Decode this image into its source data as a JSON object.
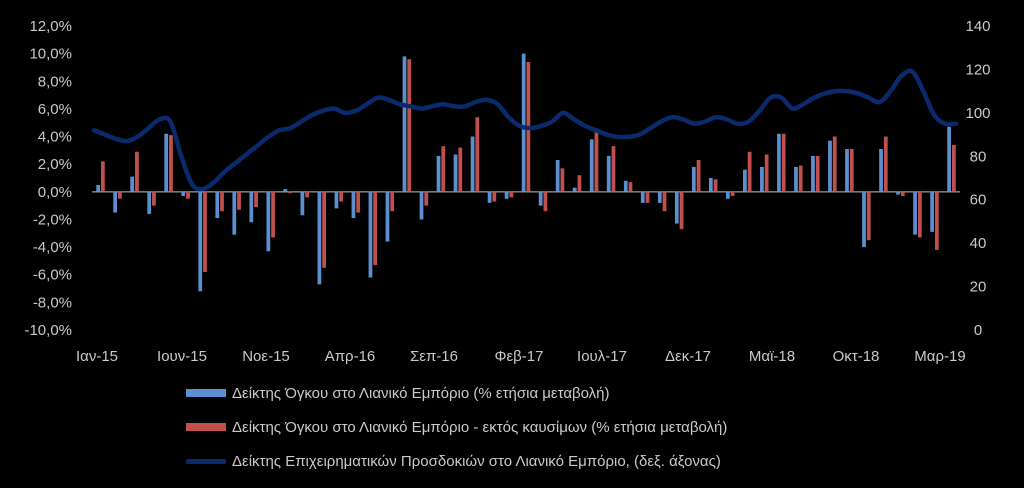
{
  "chart_data": {
    "type": "bar",
    "x_labels": [
      "Ιαν-15",
      "Ιουν-15",
      "Νοε-15",
      "Απρ-16",
      "Σεπ-16",
      "Φεβ-17",
      "Ιουλ-17",
      "Δεκ-17",
      "Μαϊ-18",
      "Οκτ-18",
      "Μαρ-19"
    ],
    "y_left_ticks": [
      "12,0%",
      "10,0%",
      "8,0%",
      "6,0%",
      "4,0%",
      "2,0%",
      "0,0%",
      "-2,0%",
      "-4,0%",
      "-6,0%",
      "-8,0%",
      "-10,0%"
    ],
    "y_right_ticks": [
      "140",
      "120",
      "100",
      "80",
      "60",
      "40",
      "20",
      "0"
    ],
    "ylim_left": [
      -10,
      12
    ],
    "ylim_right": [
      0,
      140
    ],
    "series": [
      {
        "name": "Δείκτης Όγκου στο Λιανικό Εμπόριο (% ετήσια μεταβολή)",
        "type": "bar",
        "axis": "left",
        "color": "#5b8fd0",
        "values": [
          0.5,
          -1.5,
          1.1,
          -1.6,
          4.2,
          -0.3,
          -7.2,
          -1.9,
          -3.1,
          -2.2,
          -4.3,
          0.2,
          -1.7,
          -6.7,
          -1.2,
          -1.9,
          -6.2,
          -3.6,
          9.8,
          -2.0,
          2.6,
          2.7,
          4.0,
          -0.8,
          -0.5,
          10.0,
          -1.0,
          2.3,
          0.3,
          3.8,
          2.6,
          0.8,
          -0.8,
          -0.8,
          -2.3,
          1.8,
          1.0,
          -0.5,
          1.6,
          1.8,
          4.2,
          1.8,
          2.6,
          3.7,
          3.1,
          -4.0,
          3.1,
          -0.2,
          -3.1,
          -2.9,
          4.7
        ]
      },
      {
        "name": "Δείκτης Όγκου στο Λιανικό Εμπόριο - εκτός καυσίμων (% ετήσια μεταβολή)",
        "type": "bar",
        "axis": "left",
        "color": "#c0504d",
        "values": [
          2.2,
          -0.5,
          2.9,
          -1.0,
          4.1,
          -0.5,
          -5.8,
          -1.4,
          -1.3,
          -1.1,
          -3.3,
          -0.1,
          -0.4,
          -5.5,
          -0.7,
          -1.5,
          -5.3,
          -1.4,
          9.6,
          -1.0,
          3.3,
          3.2,
          5.4,
          -0.7,
          -0.4,
          9.4,
          -1.4,
          1.7,
          1.2,
          4.3,
          3.3,
          0.7,
          -0.8,
          -1.4,
          -2.7,
          2.3,
          0.9,
          -0.3,
          2.9,
          2.7,
          4.2,
          1.9,
          2.6,
          4.0,
          3.1,
          -3.5,
          4.0,
          -0.3,
          -3.3,
          -4.2,
          3.4
        ]
      },
      {
        "name": "Δείκτης Επιχειρηματικών Προσδοκιών στο Λιανικό Εμπόριο, (δεξ. άξονας)",
        "type": "line",
        "axis": "right",
        "color": "#0a2a6c",
        "values": [
          92,
          90,
          88,
          87,
          89,
          93,
          97,
          96,
          80,
          67,
          65,
          68,
          73,
          77,
          81,
          85,
          89,
          92,
          93,
          96,
          99,
          101,
          102,
          100,
          101,
          104,
          107,
          106,
          104,
          103,
          102,
          103,
          104,
          103,
          103,
          105,
          106,
          104,
          98,
          94,
          93,
          94,
          96,
          100,
          97,
          94,
          92,
          90,
          89,
          89,
          90,
          93,
          96,
          98,
          97,
          95,
          96,
          98,
          97,
          95,
          96,
          101,
          107,
          107,
          102,
          104,
          107,
          109,
          110,
          110,
          109,
          107,
          105,
          110,
          117,
          119,
          110,
          99,
          95,
          95
        ]
      }
    ]
  }
}
